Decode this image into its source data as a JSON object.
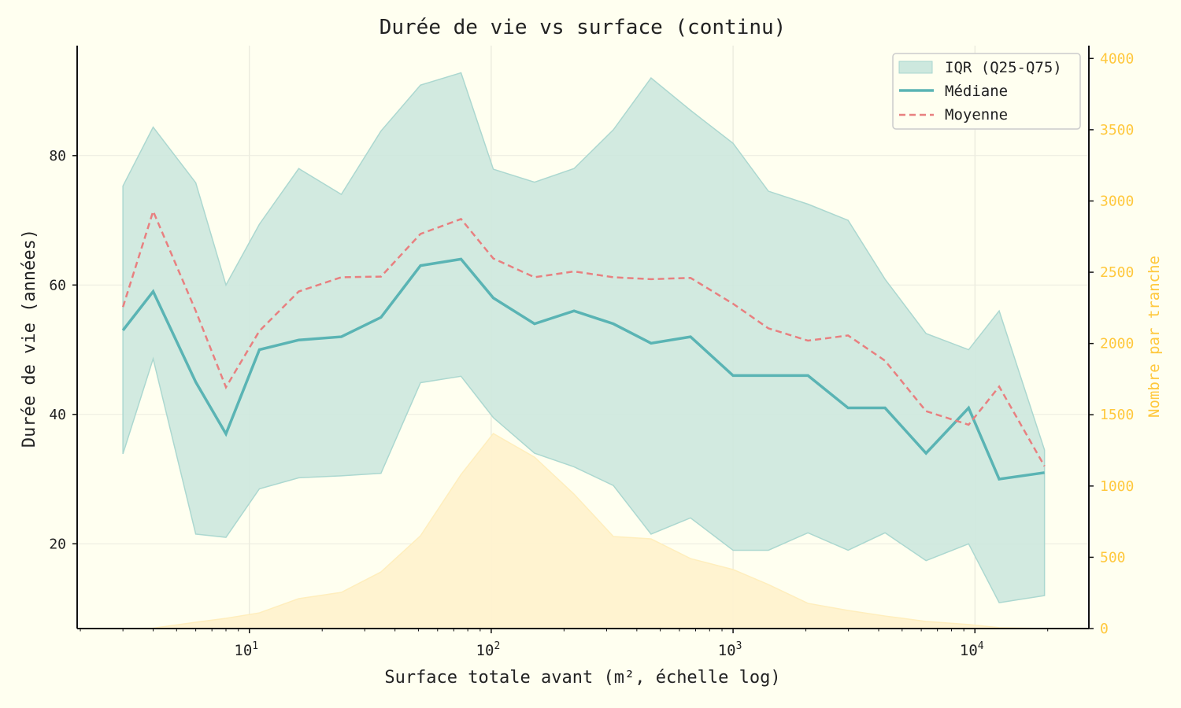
{
  "chart_data": {
    "type": "line",
    "title": "Durée de vie vs surface (continu)",
    "xlabel": "Surface totale avant (m², échelle log)",
    "ylabel": "Durée de vie (années)",
    "y2label": "Nombre par tranche",
    "xscale": "log",
    "xlim": [
      1.94,
      29600
    ],
    "ylim": [
      6.9,
      97
    ],
    "y2lim": [
      0,
      4090
    ],
    "x_ticks": [
      {
        "v": 10,
        "base": "10",
        "exp": "1"
      },
      {
        "v": 100,
        "base": "10",
        "exp": "2"
      },
      {
        "v": 1000,
        "base": "10",
        "exp": "3"
      },
      {
        "v": 10000,
        "base": "10",
        "exp": "4"
      }
    ],
    "y_ticks": [
      "20",
      "40",
      "60",
      "80"
    ],
    "y2_ticks": [
      "0",
      "500",
      "1000",
      "1500",
      "2000",
      "2500",
      "3000",
      "3500",
      "4000"
    ],
    "grid": true,
    "legend_position": "top-right",
    "x": [
      3,
      4,
      6,
      8,
      11,
      16,
      24,
      35,
      51,
      75,
      102,
      151,
      220,
      320,
      458,
      667,
      1000,
      1400,
      2040,
      2990,
      4250,
      6280,
      9420,
      12600,
      19400
    ],
    "series": [
      {
        "name": "IQR (Q25-Q75)",
        "kind": "band",
        "q25": [
          33.9,
          48.6,
          21.5,
          21,
          28.5,
          30.2,
          30.5,
          30.9,
          44.9,
          45.9,
          39.5,
          34,
          31.9,
          29,
          21.5,
          24,
          19,
          19,
          21.7,
          19,
          21.7,
          17.4,
          20,
          10.9,
          12
        ],
        "q75": [
          75.3,
          84.4,
          75.8,
          60,
          69.4,
          78,
          74,
          83.8,
          90.9,
          92.8,
          77.9,
          75.9,
          78,
          84,
          92,
          87,
          81.9,
          74.5,
          72.5,
          70,
          60.9,
          52.5,
          50,
          56,
          34.5
        ],
        "color": "#cde8de"
      },
      {
        "name": "Médiane",
        "kind": "line",
        "values": [
          53,
          59,
          45,
          37,
          50,
          51.5,
          52,
          55,
          63,
          64,
          58,
          54,
          56,
          54,
          51,
          52,
          46,
          46,
          46,
          41,
          41,
          34,
          41,
          30,
          31
        ],
        "color": "#5ab4b4"
      },
      {
        "name": "Moyenne",
        "kind": "dashed",
        "values": [
          56.6,
          71.4,
          56,
          44.2,
          52.9,
          59,
          61.2,
          61.3,
          67.9,
          70.2,
          64.1,
          61.2,
          62.1,
          61.2,
          60.9,
          61.1,
          57.1,
          53.3,
          51.4,
          52.2,
          48.3,
          40.5,
          38.4,
          44.3,
          32
        ],
        "color": "#e88080"
      },
      {
        "name": "Nombre par tranche",
        "kind": "area",
        "axis": "right",
        "values": [
          0,
          3,
          44,
          72,
          110,
          210,
          254,
          397,
          651,
          1081,
          1368,
          1203,
          943,
          646,
          629,
          491,
          414,
          309,
          177,
          127,
          88,
          50,
          28,
          6,
          0
        ],
        "color": "#ffc83d"
      }
    ]
  }
}
